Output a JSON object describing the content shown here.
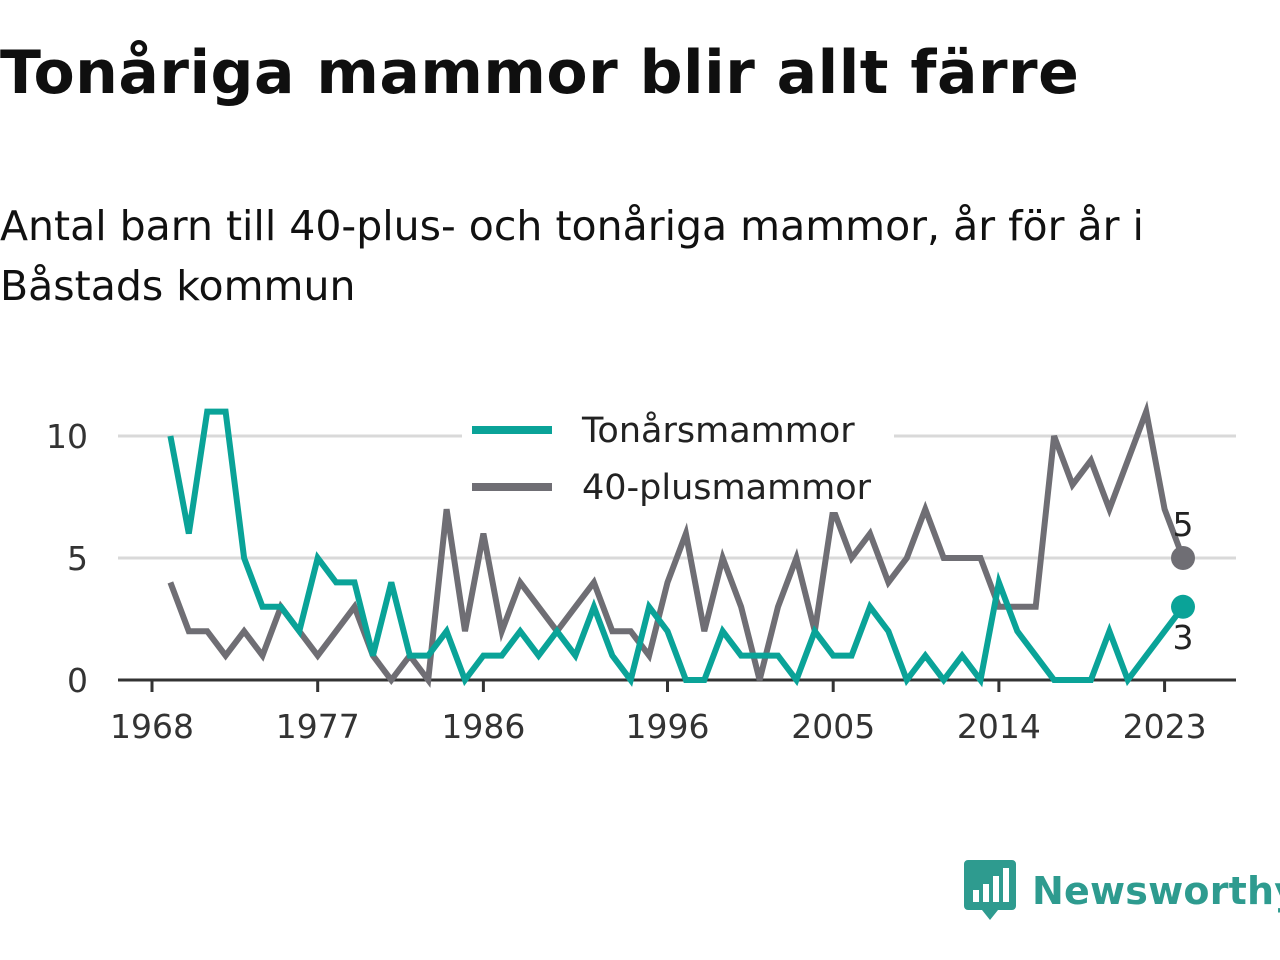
{
  "title": "Tonåriga mammor blir allt färre",
  "subtitle": "Antal barn till 40-plus- och tonåriga mammor, år för år i Båstads kommun",
  "brand": "Newsworthy",
  "colors": {
    "teen": "#0aa398",
    "forty": "#6f6e74",
    "grid": "#d9d9d9",
    "axis": "#333333",
    "brand": "#2e9b8f"
  },
  "chart_data": {
    "type": "line",
    "x": [
      1969,
      1970,
      1971,
      1972,
      1973,
      1974,
      1975,
      1976,
      1977,
      1978,
      1979,
      1980,
      1981,
      1982,
      1983,
      1984,
      1985,
      1986,
      1987,
      1988,
      1989,
      1990,
      1991,
      1992,
      1993,
      1994,
      1995,
      1996,
      1997,
      1998,
      1999,
      2000,
      2001,
      2002,
      2003,
      2004,
      2005,
      2006,
      2007,
      2008,
      2009,
      2010,
      2011,
      2012,
      2013,
      2014,
      2015,
      2016,
      2017,
      2018,
      2019,
      2020,
      2021,
      2022,
      2023,
      2024
    ],
    "series": [
      {
        "name": "Tonårsmammor",
        "values": [
          10,
          6,
          11,
          11,
          5,
          3,
          3,
          2,
          5,
          4,
          4,
          1,
          4,
          1,
          1,
          2,
          0,
          1,
          1,
          2,
          1,
          2,
          1,
          3,
          1,
          0,
          3,
          2,
          0,
          0,
          2,
          1,
          1,
          1,
          0,
          2,
          1,
          1,
          3,
          2,
          0,
          1,
          0,
          1,
          0,
          4,
          2,
          1,
          0,
          0,
          0,
          2,
          0,
          1,
          2,
          3
        ],
        "end_label": "3"
      },
      {
        "name": "40-plusmammor",
        "values": [
          4,
          2,
          2,
          1,
          2,
          1,
          3,
          2,
          1,
          2,
          3,
          1,
          0,
          1,
          0,
          7,
          2,
          6,
          2,
          4,
          3,
          2,
          3,
          4,
          2,
          2,
          1,
          4,
          6,
          2,
          5,
          3,
          0,
          3,
          5,
          2,
          7,
          5,
          6,
          4,
          5,
          7,
          5,
          5,
          5,
          3,
          3,
          3,
          10,
          8,
          9,
          7,
          9,
          11,
          7,
          5
        ],
        "end_label": "5"
      }
    ],
    "x_ticks": [
      "1968",
      "1977",
      "1986",
      "1996",
      "2005",
      "2014",
      "2023"
    ],
    "y_ticks": [
      "0",
      "5",
      "10"
    ],
    "ylim": [
      0,
      11
    ],
    "xlim": [
      1968,
      2025
    ],
    "grid": true,
    "legend": "top-center"
  }
}
